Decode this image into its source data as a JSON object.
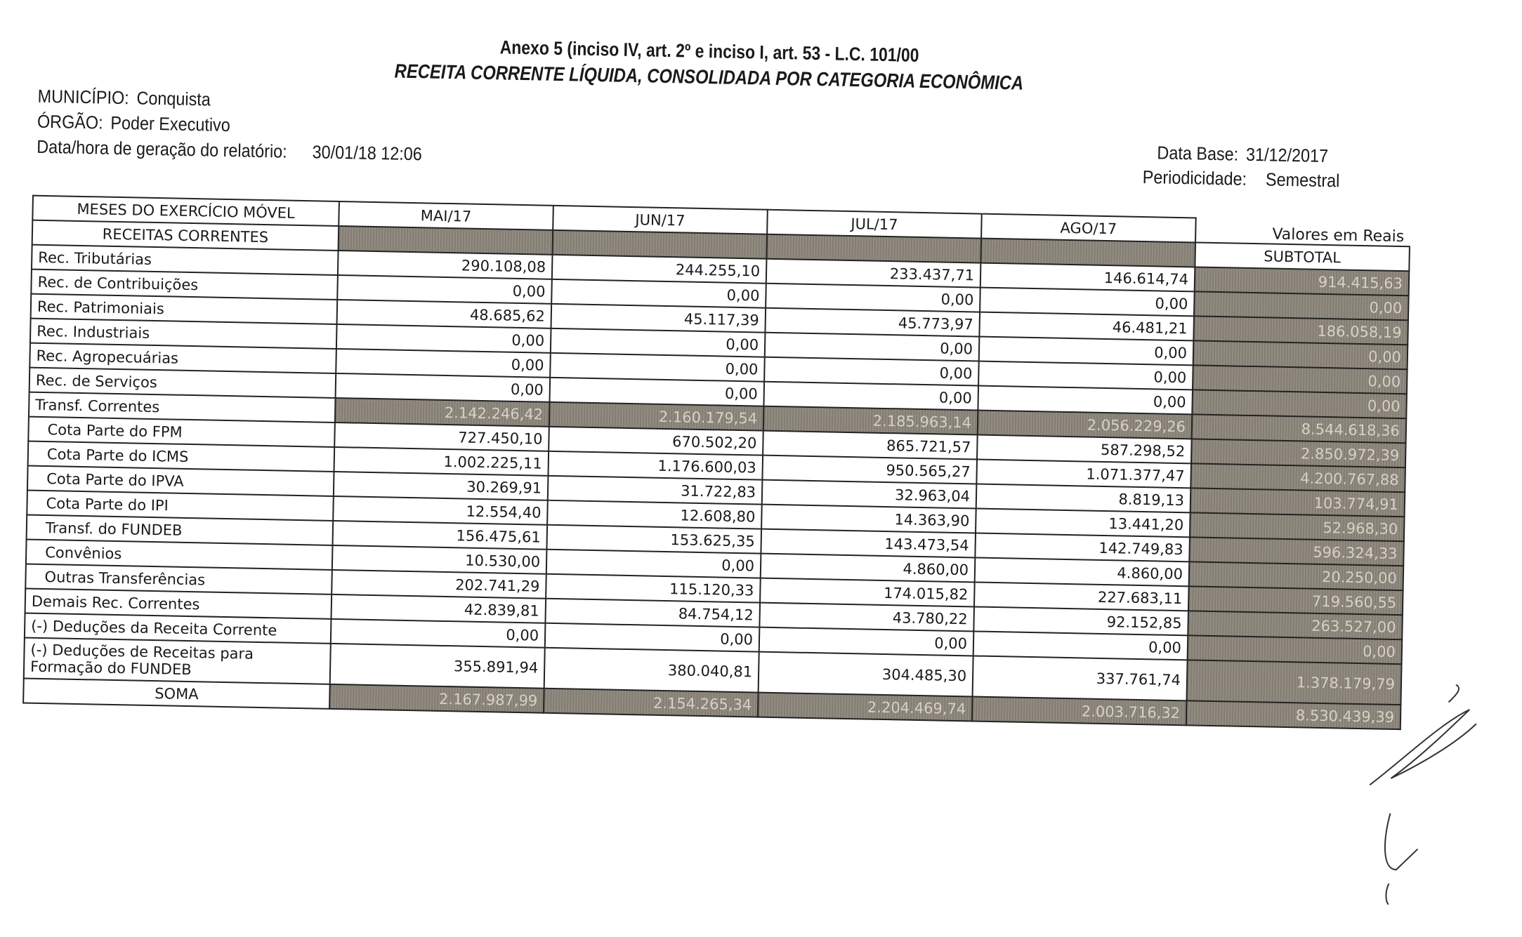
{
  "header": {
    "title": "Anexo 5 (inciso IV, art. 2º e inciso I, art. 53 - L.C. 101/00",
    "subtitle": "RECEITA CORRENTE LÍQUIDA, CONSOLIDADA POR CATEGORIA ECONÔMICA",
    "municipio_label": "MUNICÍPIO:",
    "municipio": "Conquista",
    "orgao_label": "ÓRGÃO:",
    "orgao": "Poder Executivo",
    "geracao_label": "Data/hora de geração do relatório:",
    "geracao": "30/01/18 12:06",
    "data_base_label": "Data Base:",
    "data_base": "31/12/2017",
    "periodicidade_label": "Periodicidade:",
    "periodicidade": "Semestral"
  },
  "table": {
    "unit_note": "Valores em Reais",
    "corner_top": "MESES DO EXERCÍCIO MÓVEL",
    "corner_bottom": "RECEITAS CORRENTES",
    "months": [
      "MAI/17",
      "JUN/17",
      "JUL/17",
      "AGO/17"
    ],
    "subtotal_label": "SUBTOTAL",
    "rows": [
      {
        "label": "Rec. Tributárias",
        "values": [
          "290.108,08",
          "244.255,10",
          "233.437,71",
          "146.614,74"
        ],
        "subtotal": "914.415,63"
      },
      {
        "label": "Rec. de Contribuições",
        "values": [
          "0,00",
          "0,00",
          "0,00",
          "0,00"
        ],
        "subtotal": "0,00"
      },
      {
        "label": "Rec. Patrimoniais",
        "values": [
          "48.685,62",
          "45.117,39",
          "45.773,97",
          "46.481,21"
        ],
        "subtotal": "186.058,19"
      },
      {
        "label": "Rec. Industriais",
        "values": [
          "0,00",
          "0,00",
          "0,00",
          "0,00"
        ],
        "subtotal": "0,00"
      },
      {
        "label": "Rec. Agropecuárias",
        "values": [
          "0,00",
          "0,00",
          "0,00",
          "0,00"
        ],
        "subtotal": "0,00"
      },
      {
        "label": "Rec. de Serviços",
        "values": [
          "0,00",
          "0,00",
          "0,00",
          "0,00"
        ],
        "subtotal": "0,00"
      },
      {
        "label": "Transf. Correntes",
        "values": [
          "2.142.246,42",
          "2.160.179,54",
          "2.185.963,14",
          "2.056.229,26"
        ],
        "subtotal": "8.544.618,36"
      },
      {
        "label": "Cota Parte do FPM",
        "values": [
          "727.450,10",
          "670.502,20",
          "865.721,57",
          "587.298,52"
        ],
        "subtotal": "2.850.972,39"
      },
      {
        "label": "Cota Parte do ICMS",
        "values": [
          "1.002.225,11",
          "1.176.600,03",
          "950.565,27",
          "1.071.377,47"
        ],
        "subtotal": "4.200.767,88"
      },
      {
        "label": "Cota Parte do IPVA",
        "values": [
          "30.269,91",
          "31.722,83",
          "32.963,04",
          "8.819,13"
        ],
        "subtotal": "103.774,91"
      },
      {
        "label": "Cota Parte do IPI",
        "values": [
          "12.554,40",
          "12.608,80",
          "14.363,90",
          "13.441,20"
        ],
        "subtotal": "52.968,30"
      },
      {
        "label": "Transf. do FUNDEB",
        "values": [
          "156.475,61",
          "153.625,35",
          "143.473,54",
          "142.749,83"
        ],
        "subtotal": "596.324,33"
      },
      {
        "label": "Convênios",
        "values": [
          "10.530,00",
          "0,00",
          "4.860,00",
          "4.860,00"
        ],
        "subtotal": "20.250,00"
      },
      {
        "label": "Outras Transferências",
        "values": [
          "202.741,29",
          "115.120,33",
          "174.015,82",
          "227.683,11"
        ],
        "subtotal": "719.560,55"
      },
      {
        "label": "Demais Rec. Correntes",
        "values": [
          "42.839,81",
          "84.754,12",
          "43.780,22",
          "92.152,85"
        ],
        "subtotal": "263.527,00"
      },
      {
        "label": "(-) Deduções da Receita Corrente",
        "values": [
          "0,00",
          "0,00",
          "0,00",
          "0,00"
        ],
        "subtotal": "0,00"
      },
      {
        "label": "(-) Deduções de Receitas para Formação do FUNDEB",
        "values": [
          "355.891,94",
          "380.040,81",
          "304.485,30",
          "337.761,74"
        ],
        "subtotal": "1.378.179,79"
      },
      {
        "label": "SOMA",
        "values": [
          "2.167.987,99",
          "2.154.265,34",
          "2.204.469,74",
          "2.003.716,32"
        ],
        "subtotal": "8.530.439,39"
      }
    ]
  }
}
